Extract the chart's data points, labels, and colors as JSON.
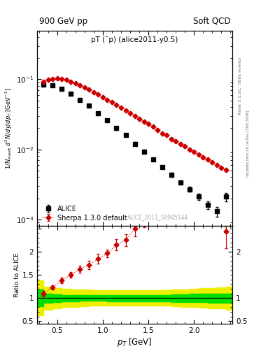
{
  "title_left": "900 GeV pp",
  "title_right": "Soft QCD",
  "plot_title": "pT (¯p) (alice2011-y0.5)",
  "watermark": "ALICE_2011_S8945144",
  "right_label": "Rivet 3.1.10,  500k events",
  "right_label2": "mcplots.cern.ch [arXiv:1306.3436]",
  "xlabel": "p_{T} [GeV]",
  "ylabel_main": "1/N_{event} d^{2}N/dy/dp_{T} [GeV^{-1}]",
  "ylabel_ratio": "Ratio to ALICE",
  "xlim": [
    0.28,
    2.42
  ],
  "ylim_main": [
    0.0008,
    0.5
  ],
  "ylim_ratio": [
    0.44,
    2.55
  ],
  "alice_x": [
    0.35,
    0.45,
    0.55,
    0.65,
    0.75,
    0.85,
    0.95,
    1.05,
    1.15,
    1.25,
    1.35,
    1.45,
    1.55,
    1.65,
    1.75,
    1.85,
    1.95,
    2.05,
    2.15,
    2.25,
    2.35
  ],
  "alice_y": [
    0.085,
    0.083,
    0.073,
    0.062,
    0.051,
    0.042,
    0.033,
    0.026,
    0.02,
    0.016,
    0.012,
    0.0093,
    0.0072,
    0.0056,
    0.0043,
    0.0034,
    0.0027,
    0.0021,
    0.0016,
    0.0013,
    0.0021
  ],
  "alice_yerr": [
    0.004,
    0.003,
    0.003,
    0.002,
    0.002,
    0.002,
    0.0015,
    0.001,
    0.001,
    0.0008,
    0.0007,
    0.0005,
    0.0004,
    0.0003,
    0.0003,
    0.0002,
    0.0002,
    0.0002,
    0.0002,
    0.0002,
    0.0003
  ],
  "sherpa_x": [
    0.35,
    0.4,
    0.45,
    0.5,
    0.55,
    0.6,
    0.65,
    0.7,
    0.75,
    0.8,
    0.85,
    0.9,
    0.95,
    1.0,
    1.05,
    1.1,
    1.15,
    1.2,
    1.25,
    1.3,
    1.35,
    1.4,
    1.45,
    1.5,
    1.55,
    1.6,
    1.65,
    1.7,
    1.75,
    1.8,
    1.85,
    1.9,
    1.95,
    2.0,
    2.05,
    2.1,
    2.15,
    2.2,
    2.25,
    2.3,
    2.35
  ],
  "sherpa_y": [
    0.093,
    0.099,
    0.102,
    0.103,
    0.101,
    0.098,
    0.093,
    0.088,
    0.083,
    0.077,
    0.072,
    0.066,
    0.061,
    0.056,
    0.051,
    0.047,
    0.043,
    0.039,
    0.036,
    0.033,
    0.03,
    0.027,
    0.025,
    0.023,
    0.021,
    0.019,
    0.017,
    0.016,
    0.014,
    0.013,
    0.012,
    0.011,
    0.01,
    0.0092,
    0.0084,
    0.0077,
    0.0071,
    0.0065,
    0.006,
    0.0055,
    0.0051
  ],
  "sherpa_yerr": [
    0.002,
    0.002,
    0.002,
    0.002,
    0.002,
    0.002,
    0.002,
    0.002,
    0.002,
    0.002,
    0.002,
    0.002,
    0.002,
    0.001,
    0.001,
    0.001,
    0.001,
    0.001,
    0.001,
    0.001,
    0.001,
    0.0008,
    0.0008,
    0.0007,
    0.0007,
    0.0006,
    0.0006,
    0.0005,
    0.0005,
    0.0005,
    0.0004,
    0.0004,
    0.0004,
    0.0003,
    0.0003,
    0.0003,
    0.0003,
    0.0003,
    0.0002,
    0.0002,
    0.0002
  ],
  "band_x": [
    0.28,
    0.35,
    0.45,
    0.55,
    0.65,
    0.75,
    0.85,
    0.95,
    1.05,
    1.15,
    1.25,
    1.35,
    1.45,
    1.55,
    1.65,
    1.75,
    1.85,
    1.95,
    2.05,
    2.15,
    2.25,
    2.35,
    2.42
  ],
  "green_upper": [
    1.18,
    1.1,
    1.08,
    1.07,
    1.07,
    1.06,
    1.06,
    1.06,
    1.07,
    1.07,
    1.07,
    1.07,
    1.07,
    1.07,
    1.07,
    1.08,
    1.08,
    1.09,
    1.09,
    1.1,
    1.1,
    1.1,
    1.1
  ],
  "green_lower": [
    0.82,
    0.9,
    0.92,
    0.93,
    0.93,
    0.94,
    0.94,
    0.94,
    0.93,
    0.93,
    0.93,
    0.93,
    0.93,
    0.93,
    0.93,
    0.92,
    0.92,
    0.91,
    0.91,
    0.9,
    0.9,
    0.9,
    0.9
  ],
  "yellow_upper": [
    1.38,
    1.25,
    1.22,
    1.2,
    1.19,
    1.18,
    1.17,
    1.17,
    1.17,
    1.17,
    1.17,
    1.17,
    1.17,
    1.17,
    1.17,
    1.18,
    1.19,
    1.2,
    1.21,
    1.22,
    1.23,
    1.25,
    1.27
  ],
  "yellow_lower": [
    0.62,
    0.75,
    0.78,
    0.8,
    0.81,
    0.82,
    0.83,
    0.83,
    0.83,
    0.83,
    0.83,
    0.83,
    0.83,
    0.83,
    0.83,
    0.82,
    0.81,
    0.8,
    0.79,
    0.78,
    0.77,
    0.75,
    0.73
  ],
  "alice_color": "#000000",
  "sherpa_color": "#cc0000",
  "green_color": "#00dd00",
  "yellow_color": "#eeee00",
  "bg_color": "#ffffff"
}
